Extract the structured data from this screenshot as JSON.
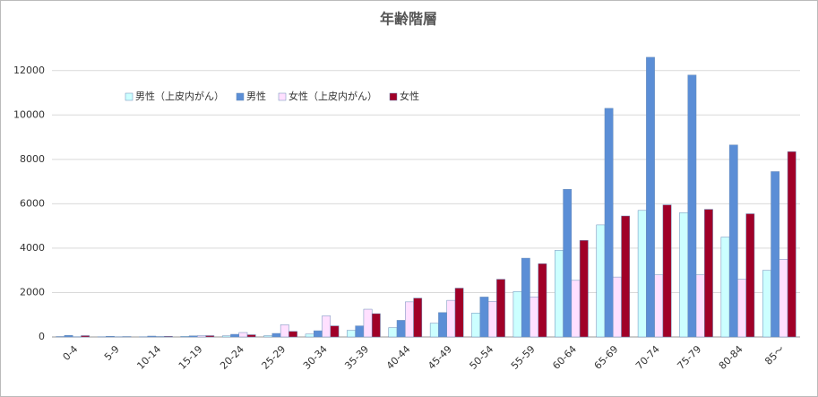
{
  "chart_data": {
    "type": "bar",
    "title": "年齢階層",
    "categories": [
      "0-4",
      "5-9",
      "10-14",
      "15-19",
      "20-24",
      "25-29",
      "30-34",
      "35-39",
      "40-44",
      "45-49",
      "50-54",
      "55-59",
      "60-64",
      "65-69",
      "70-74",
      "75-79",
      "80-84",
      "85～"
    ],
    "series": [
      {
        "name": "男性（上皮内がん）",
        "color": "#ccffff",
        "values": [
          20,
          10,
          10,
          30,
          50,
          60,
          130,
          300,
          420,
          620,
          1080,
          2050,
          3900,
          5050,
          5700,
          5600,
          4500,
          3000
        ]
      },
      {
        "name": "男性",
        "color": "#5b8ed6",
        "values": [
          70,
          30,
          40,
          50,
          120,
          160,
          280,
          500,
          750,
          1100,
          1800,
          3550,
          6650,
          10300,
          12600,
          11800,
          8650,
          7450
        ]
      },
      {
        "name": "女性（上皮内がん）",
        "color": "#ffe0ff",
        "values": [
          10,
          10,
          20,
          60,
          200,
          550,
          950,
          1250,
          1580,
          1650,
          1600,
          1800,
          2550,
          2700,
          2800,
          2800,
          2600,
          3500
        ]
      },
      {
        "name": "女性",
        "color": "#a00028",
        "values": [
          60,
          20,
          30,
          60,
          100,
          250,
          500,
          1050,
          1750,
          2200,
          2600,
          3300,
          4350,
          5450,
          5950,
          5750,
          5550,
          8350
        ]
      }
    ],
    "ylim": [
      0,
      13000
    ],
    "yticks": [
      0,
      2000,
      4000,
      6000,
      8000,
      10000,
      12000
    ],
    "grid": true,
    "legend": "top-left"
  }
}
